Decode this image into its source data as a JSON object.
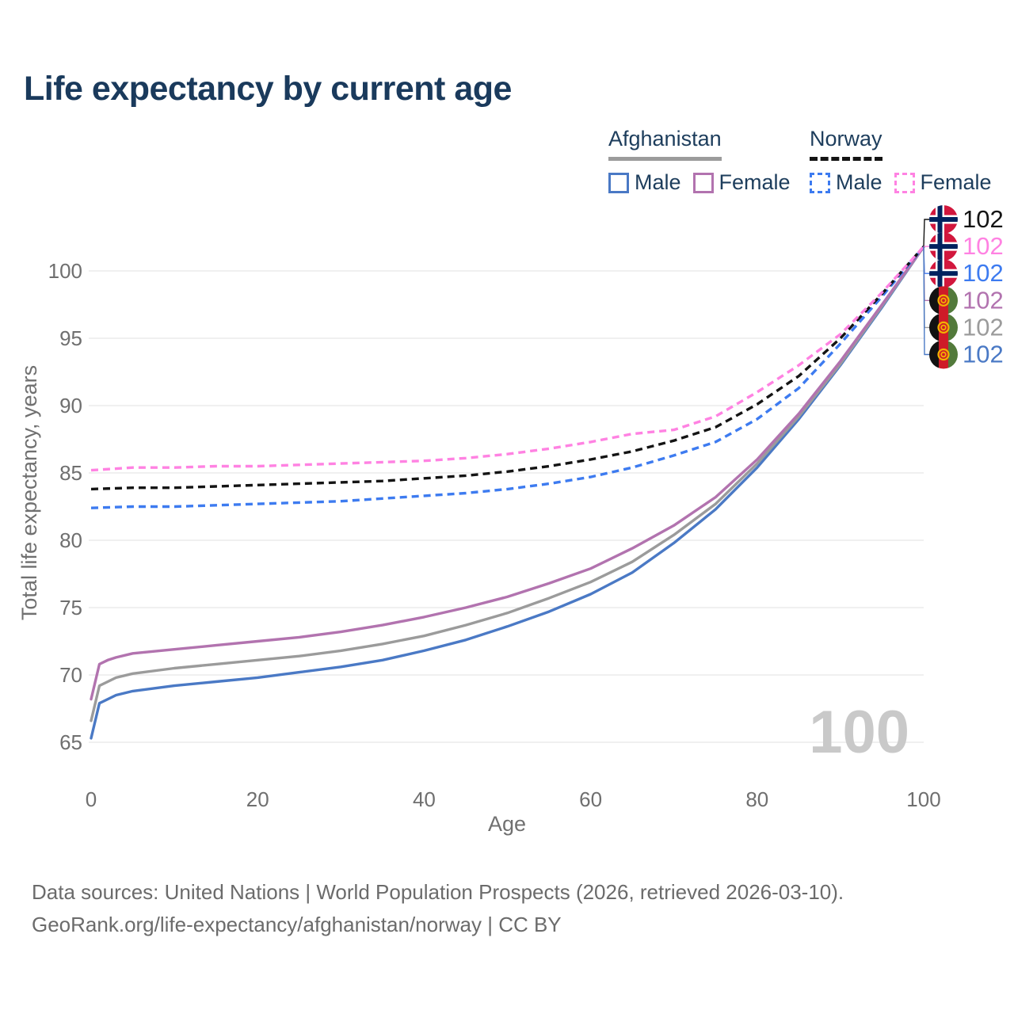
{
  "title": "Life expectancy by current age",
  "watermark_age": "100",
  "legend": {
    "groups": [
      {
        "country": "Afghanistan",
        "line_style": "solid",
        "underline_color": "#9b9b9b",
        "items": [
          {
            "label": "Male",
            "color": "#4a79c5"
          },
          {
            "label": "Female",
            "color": "#b273af"
          }
        ]
      },
      {
        "country": "Norway",
        "line_style": "dashed",
        "underline_color": "#141414",
        "items": [
          {
            "label": "Male",
            "color": "#3d7bf0"
          },
          {
            "label": "Female",
            "color": "#ff82e2"
          }
        ]
      }
    ]
  },
  "footer": {
    "line1": "Data sources: United Nations | World Population Prospects (2026, retrieved 2026-03-10).",
    "line2": "GeoRank.org/life-expectancy/afghanistan/norway | CC BY"
  },
  "chart_data": {
    "type": "line",
    "title": "Life expectancy by current age",
    "xlabel": "Age",
    "ylabel": "Total life expectancy, years",
    "x_ticks": [
      0,
      20,
      40,
      60,
      80,
      100
    ],
    "y_ticks": [
      65,
      70,
      75,
      80,
      85,
      90,
      95,
      100
    ],
    "xlim": [
      0,
      100
    ],
    "ylim": [
      65,
      102.5
    ],
    "grid": "horizontal-only",
    "legend_position": "top-right",
    "series": [
      {
        "id": "afghanistan-male",
        "name": "Afghanistan Male",
        "country": "Afghanistan",
        "sex": "Male",
        "color": "#4a79c5",
        "dashed": false,
        "points": [
          [
            0,
            65.3
          ],
          [
            1,
            67.9
          ],
          [
            2,
            68.2
          ],
          [
            3,
            68.5
          ],
          [
            5,
            68.8
          ],
          [
            10,
            69.2
          ],
          [
            15,
            69.5
          ],
          [
            20,
            69.8
          ],
          [
            25,
            70.2
          ],
          [
            30,
            70.6
          ],
          [
            35,
            71.1
          ],
          [
            40,
            71.8
          ],
          [
            45,
            72.6
          ],
          [
            50,
            73.6
          ],
          [
            55,
            74.7
          ],
          [
            60,
            76.0
          ],
          [
            65,
            77.6
          ],
          [
            70,
            79.8
          ],
          [
            75,
            82.3
          ],
          [
            80,
            85.4
          ],
          [
            85,
            89.0
          ],
          [
            90,
            93.0
          ],
          [
            95,
            97.3
          ],
          [
            100,
            101.8
          ]
        ]
      },
      {
        "id": "afghanistan-both",
        "name": "Afghanistan Both sexes",
        "country": "Afghanistan",
        "sex": "Both",
        "color": "#9b9b9b",
        "dashed": false,
        "points": [
          [
            0,
            66.6
          ],
          [
            1,
            69.2
          ],
          [
            2,
            69.5
          ],
          [
            3,
            69.8
          ],
          [
            5,
            70.1
          ],
          [
            10,
            70.5
          ],
          [
            15,
            70.8
          ],
          [
            20,
            71.1
          ],
          [
            25,
            71.4
          ],
          [
            30,
            71.8
          ],
          [
            35,
            72.3
          ],
          [
            40,
            72.9
          ],
          [
            45,
            73.7
          ],
          [
            50,
            74.6
          ],
          [
            55,
            75.7
          ],
          [
            60,
            76.9
          ],
          [
            65,
            78.4
          ],
          [
            70,
            80.4
          ],
          [
            75,
            82.7
          ],
          [
            80,
            85.7
          ],
          [
            85,
            89.2
          ],
          [
            90,
            93.1
          ],
          [
            95,
            97.4
          ],
          [
            100,
            101.8
          ]
        ]
      },
      {
        "id": "afghanistan-female",
        "name": "Afghanistan Female",
        "country": "Afghanistan",
        "sex": "Female",
        "color": "#b273af",
        "dashed": false,
        "points": [
          [
            0,
            68.2
          ],
          [
            1,
            70.8
          ],
          [
            2,
            71.1
          ],
          [
            3,
            71.3
          ],
          [
            5,
            71.6
          ],
          [
            10,
            71.9
          ],
          [
            15,
            72.2
          ],
          [
            20,
            72.5
          ],
          [
            25,
            72.8
          ],
          [
            30,
            73.2
          ],
          [
            35,
            73.7
          ],
          [
            40,
            74.3
          ],
          [
            45,
            75.0
          ],
          [
            50,
            75.8
          ],
          [
            55,
            76.8
          ],
          [
            60,
            77.9
          ],
          [
            65,
            79.4
          ],
          [
            70,
            81.1
          ],
          [
            75,
            83.2
          ],
          [
            80,
            86.0
          ],
          [
            85,
            89.4
          ],
          [
            90,
            93.3
          ],
          [
            95,
            97.5
          ],
          [
            100,
            101.8
          ]
        ]
      },
      {
        "id": "norway-male",
        "name": "Norway Male",
        "country": "Norway",
        "sex": "Male",
        "color": "#3d7bf0",
        "dashed": true,
        "points": [
          [
            0,
            82.4
          ],
          [
            5,
            82.5
          ],
          [
            10,
            82.5
          ],
          [
            15,
            82.6
          ],
          [
            20,
            82.7
          ],
          [
            25,
            82.8
          ],
          [
            30,
            82.9
          ],
          [
            35,
            83.1
          ],
          [
            40,
            83.3
          ],
          [
            45,
            83.5
          ],
          [
            50,
            83.8
          ],
          [
            55,
            84.2
          ],
          [
            60,
            84.7
          ],
          [
            65,
            85.4
          ],
          [
            70,
            86.3
          ],
          [
            75,
            87.3
          ],
          [
            80,
            89.0
          ],
          [
            85,
            91.3
          ],
          [
            90,
            94.6
          ],
          [
            95,
            98.1
          ],
          [
            100,
            101.8
          ]
        ]
      },
      {
        "id": "norway-both",
        "name": "Norway Both sexes",
        "country": "Norway",
        "sex": "Both",
        "color": "#141414",
        "dashed": true,
        "points": [
          [
            0,
            83.8
          ],
          [
            5,
            83.9
          ],
          [
            10,
            83.9
          ],
          [
            15,
            84.0
          ],
          [
            20,
            84.1
          ],
          [
            25,
            84.2
          ],
          [
            30,
            84.3
          ],
          [
            35,
            84.4
          ],
          [
            40,
            84.6
          ],
          [
            45,
            84.8
          ],
          [
            50,
            85.1
          ],
          [
            55,
            85.5
          ],
          [
            60,
            86.0
          ],
          [
            65,
            86.6
          ],
          [
            70,
            87.4
          ],
          [
            75,
            88.4
          ],
          [
            80,
            90.1
          ],
          [
            85,
            92.2
          ],
          [
            90,
            95.0
          ],
          [
            95,
            98.3
          ],
          [
            100,
            101.8
          ]
        ]
      },
      {
        "id": "norway-female",
        "name": "Norway Female",
        "country": "Norway",
        "sex": "Female",
        "color": "#ff82e2",
        "dashed": true,
        "points": [
          [
            0,
            85.2
          ],
          [
            5,
            85.4
          ],
          [
            10,
            85.4
          ],
          [
            15,
            85.5
          ],
          [
            20,
            85.5
          ],
          [
            25,
            85.6
          ],
          [
            30,
            85.7
          ],
          [
            35,
            85.8
          ],
          [
            40,
            85.9
          ],
          [
            45,
            86.1
          ],
          [
            50,
            86.4
          ],
          [
            55,
            86.8
          ],
          [
            60,
            87.3
          ],
          [
            65,
            87.9
          ],
          [
            70,
            88.2
          ],
          [
            75,
            89.2
          ],
          [
            80,
            91.0
          ],
          [
            85,
            93.0
          ],
          [
            90,
            95.3
          ],
          [
            95,
            98.4
          ],
          [
            100,
            101.8
          ]
        ]
      }
    ],
    "end_labels": [
      {
        "series": "norway-both",
        "flag": "norway",
        "text": "102",
        "color": "#141414"
      },
      {
        "series": "norway-female",
        "flag": "norway",
        "text": "102",
        "color": "#ff82e2"
      },
      {
        "series": "norway-male",
        "flag": "norway",
        "text": "102",
        "color": "#3d7bf0"
      },
      {
        "series": "afghanistan-female",
        "flag": "afghanistan",
        "text": "102",
        "color": "#b273af"
      },
      {
        "series": "afghanistan-both",
        "flag": "afghanistan",
        "text": "102",
        "color": "#9b9b9b"
      },
      {
        "series": "afghanistan-male",
        "flag": "afghanistan",
        "text": "102",
        "color": "#4a79c5"
      }
    ]
  }
}
